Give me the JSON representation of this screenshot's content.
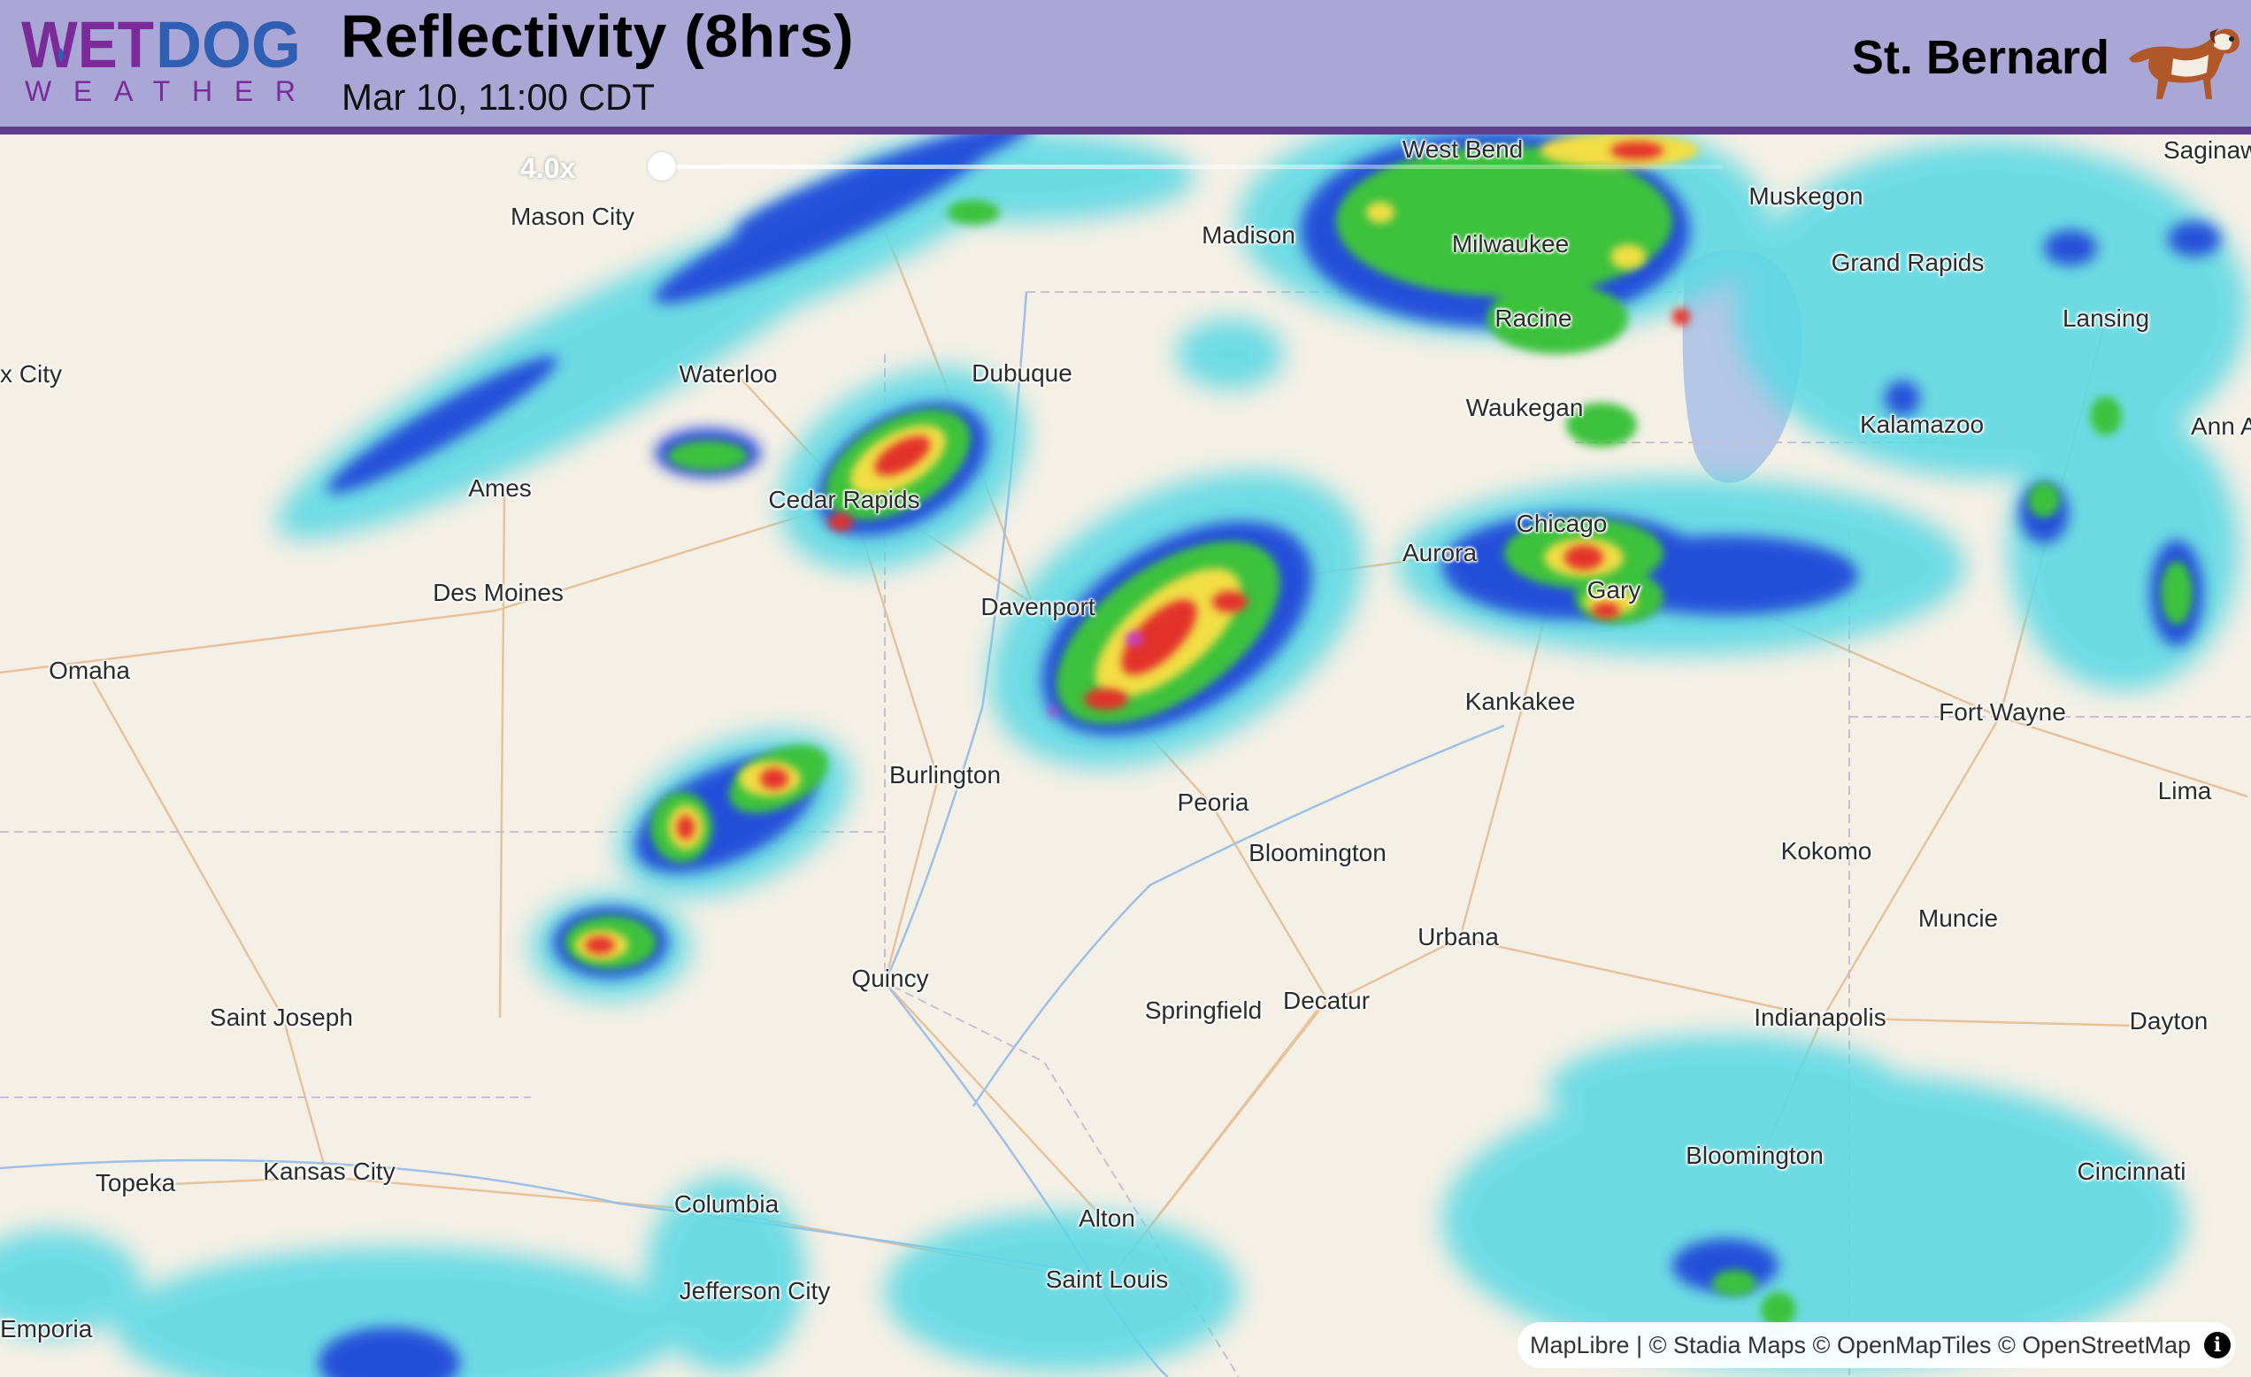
{
  "header": {
    "logo": {
      "line1_a": "WET",
      "line1_b": "DOG",
      "line2": "WEATHER"
    },
    "title": "Reflectivity (8hrs)",
    "subtitle": "Mar 10, 11:00 CDT",
    "breed": "St. Bernard",
    "breed_icon": "st-bernard-dog-icon",
    "colors": {
      "background": "#aaa6d6",
      "border": "#5d3f8e",
      "logo_purple": "#7b2a9a",
      "logo_blue": "#2f5fb3"
    }
  },
  "map": {
    "playback_speed": "4.0x",
    "playback_position": 0,
    "cities": [
      "West Bend",
      "Saginaw",
      "Mason City",
      "Madison",
      "Muskegon",
      "Milwaukee",
      "Grand Rapids",
      "Racine",
      "Lansing",
      "x City",
      "Waterloo",
      "Dubuque",
      "Waukegan",
      "Kalamazoo",
      "Ann A",
      "Ames",
      "Cedar Rapids",
      "Chicago",
      "Aurora",
      "Des Moines",
      "Gary",
      "Davenport",
      "Omaha",
      "Kankakee",
      "Fort Wayne",
      "Burlington",
      "Lima",
      "Peoria",
      "Bloomington",
      "Kokomo",
      "Muncie",
      "Urbana",
      "Quincy",
      "Decatur",
      "Springfield",
      "Saint Joseph",
      "Indianapolis",
      "Dayton",
      "Bloomington",
      "Cincinnati",
      "Kansas City",
      "Topeka",
      "Columbia",
      "Alton",
      "Saint Louis",
      "Jefferson City",
      "Emporia"
    ],
    "radar_colors": {
      "light": "#5fd9e3",
      "moderate": "#1f3fd8",
      "heavy": "#3cc23c",
      "very_heavy": "#f2de45",
      "intense": "#e3312a",
      "extreme": "#c13fd3"
    },
    "attribution": "MapLibre | © Stadia Maps © OpenMapTiles © OpenStreetMap",
    "info_icon": "info-icon"
  }
}
